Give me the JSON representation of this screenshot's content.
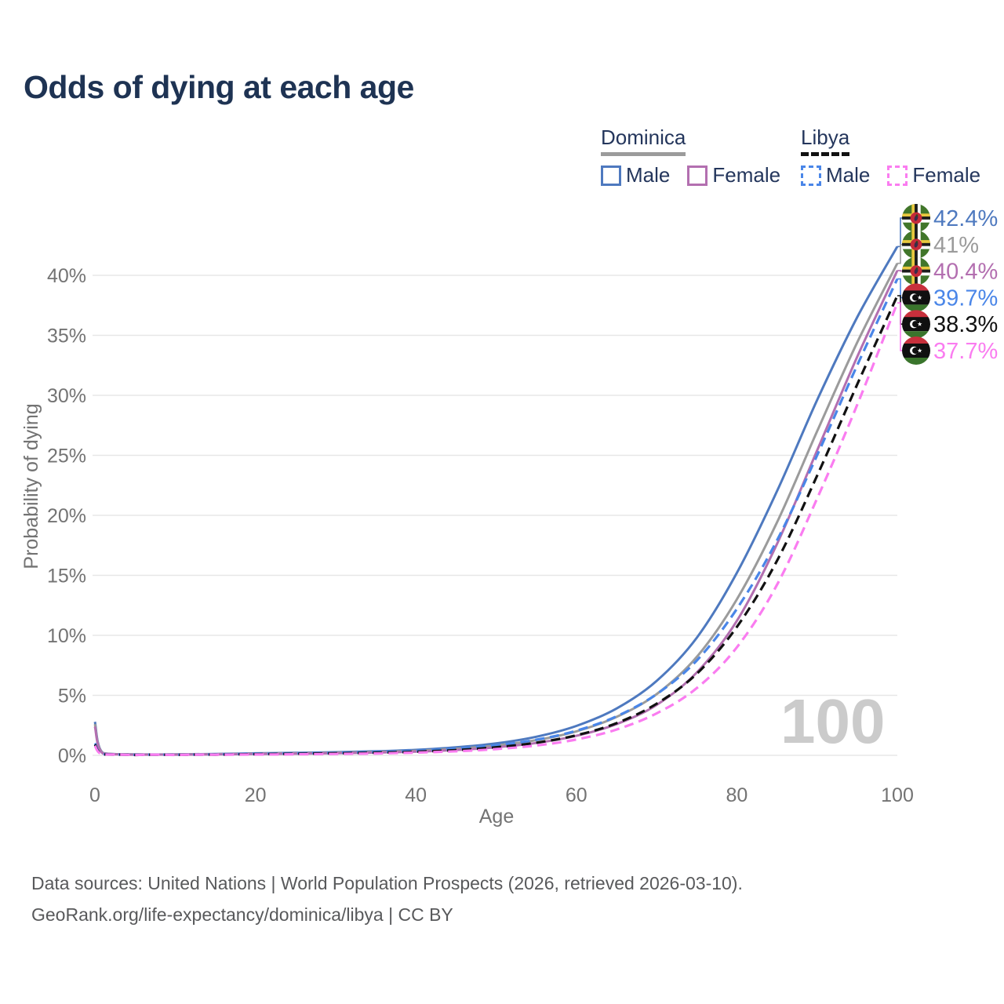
{
  "title": "Odds of dying at each age",
  "legend": {
    "groups": [
      {
        "label": "Dominica",
        "line_style": "solid",
        "underline_color": "#9b9b9b",
        "items": [
          {
            "label": "Male",
            "color": "#4e79bf",
            "dashed": false
          },
          {
            "label": "Female",
            "color": "#b36fb0",
            "dashed": false
          }
        ]
      },
      {
        "label": "Libya",
        "line_style": "dashed",
        "underline_color": "#111111",
        "items": [
          {
            "label": "Male",
            "color": "#4a86e8",
            "dashed": true
          },
          {
            "label": "Female",
            "color": "#fa7cf0",
            "dashed": true
          }
        ]
      }
    ]
  },
  "chart_data": {
    "type": "line",
    "title": "Odds of dying at each age",
    "xlabel": "Age",
    "ylabel": "Probability of dying",
    "xlim": [
      0,
      100
    ],
    "ylim": [
      0,
      44
    ],
    "grid": true,
    "legend_position": "top-right",
    "hover_age_label": "100",
    "x_tick_values": [
      0,
      20,
      40,
      60,
      80,
      100
    ],
    "x_tick_labels": [
      "0",
      "20",
      "40",
      "60",
      "80",
      "100"
    ],
    "y_tick_values": [
      0,
      5,
      10,
      15,
      20,
      25,
      30,
      35,
      40
    ],
    "y_tick_labels": [
      "0%",
      "5%",
      "10%",
      "15%",
      "20%",
      "25%",
      "30%",
      "35%",
      "40%"
    ],
    "x": [
      0,
      1,
      5,
      10,
      15,
      20,
      25,
      30,
      35,
      40,
      45,
      50,
      55,
      60,
      65,
      70,
      75,
      80,
      85,
      90,
      95,
      100
    ],
    "series": [
      {
        "name": "Dominica Male",
        "country": "Dominica",
        "sex": "Male",
        "color": "#4e79bf",
        "dashed": false,
        "flag": "dominica",
        "end_label": "42.4%",
        "end_value": 42.4,
        "values": [
          2.8,
          0.2,
          0.08,
          0.08,
          0.12,
          0.17,
          0.21,
          0.26,
          0.34,
          0.46,
          0.67,
          1.0,
          1.55,
          2.45,
          3.9,
          6.2,
          9.8,
          15.2,
          22.0,
          29.6,
          36.5,
          42.4
        ]
      },
      {
        "name": "Dominica Both sexes",
        "country": "Dominica",
        "sex": "Both sexes",
        "color": "#9b9b9b",
        "dashed": false,
        "flag": "dominica",
        "end_label": "41%",
        "end_value": 41.0,
        "values": [
          2.6,
          0.18,
          0.07,
          0.07,
          0.1,
          0.14,
          0.17,
          0.22,
          0.28,
          0.38,
          0.55,
          0.82,
          1.27,
          2.0,
          3.2,
          5.1,
          8.2,
          13.0,
          19.4,
          27.0,
          34.4,
          41.0
        ]
      },
      {
        "name": "Dominica Female",
        "country": "Dominica",
        "sex": "Female",
        "color": "#b36fb0",
        "dashed": false,
        "flag": "dominica",
        "end_label": "40.4%",
        "end_value": 40.4,
        "values": [
          2.4,
          0.16,
          0.06,
          0.06,
          0.08,
          0.11,
          0.14,
          0.18,
          0.23,
          0.31,
          0.45,
          0.67,
          1.03,
          1.63,
          2.6,
          4.2,
          6.9,
          11.2,
          17.6,
          25.4,
          33.2,
          40.4
        ]
      },
      {
        "name": "Libya Male",
        "country": "Libya",
        "sex": "Male",
        "color": "#4a86e8",
        "dashed": true,
        "flag": "libya",
        "end_label": "39.7%",
        "end_value": 39.7,
        "values": [
          1.0,
          0.09,
          0.04,
          0.04,
          0.08,
          0.13,
          0.17,
          0.21,
          0.28,
          0.38,
          0.56,
          0.84,
          1.3,
          2.05,
          3.25,
          5.1,
          7.9,
          12.2,
          17.9,
          25.0,
          32.5,
          39.7
        ]
      },
      {
        "name": "Libya Both sexes",
        "country": "Libya",
        "sex": "Both sexes",
        "color": "#111111",
        "dashed": true,
        "flag": "libya",
        "end_label": "38.3%",
        "end_value": 38.3,
        "values": [
          0.9,
          0.08,
          0.035,
          0.035,
          0.06,
          0.1,
          0.13,
          0.17,
          0.22,
          0.3,
          0.44,
          0.67,
          1.05,
          1.67,
          2.68,
          4.3,
          6.8,
          10.7,
          16.2,
          23.3,
          30.9,
          38.3
        ]
      },
      {
        "name": "Libya Female",
        "country": "Libya",
        "sex": "Female",
        "color": "#fa7cf0",
        "dashed": true,
        "flag": "libya",
        "end_label": "37.7%",
        "end_value": 37.7,
        "values": [
          0.8,
          0.07,
          0.03,
          0.03,
          0.05,
          0.07,
          0.09,
          0.12,
          0.16,
          0.23,
          0.34,
          0.52,
          0.82,
          1.32,
          2.15,
          3.5,
          5.6,
          9.0,
          14.2,
          21.4,
          29.2,
          37.7
        ]
      }
    ]
  },
  "footer": {
    "line1": "Data sources: United Nations | World Population Prospects (2026, retrieved 2026-03-10).",
    "line2": "GeoRank.org/life-expectancy/dominica/libya | CC BY"
  }
}
